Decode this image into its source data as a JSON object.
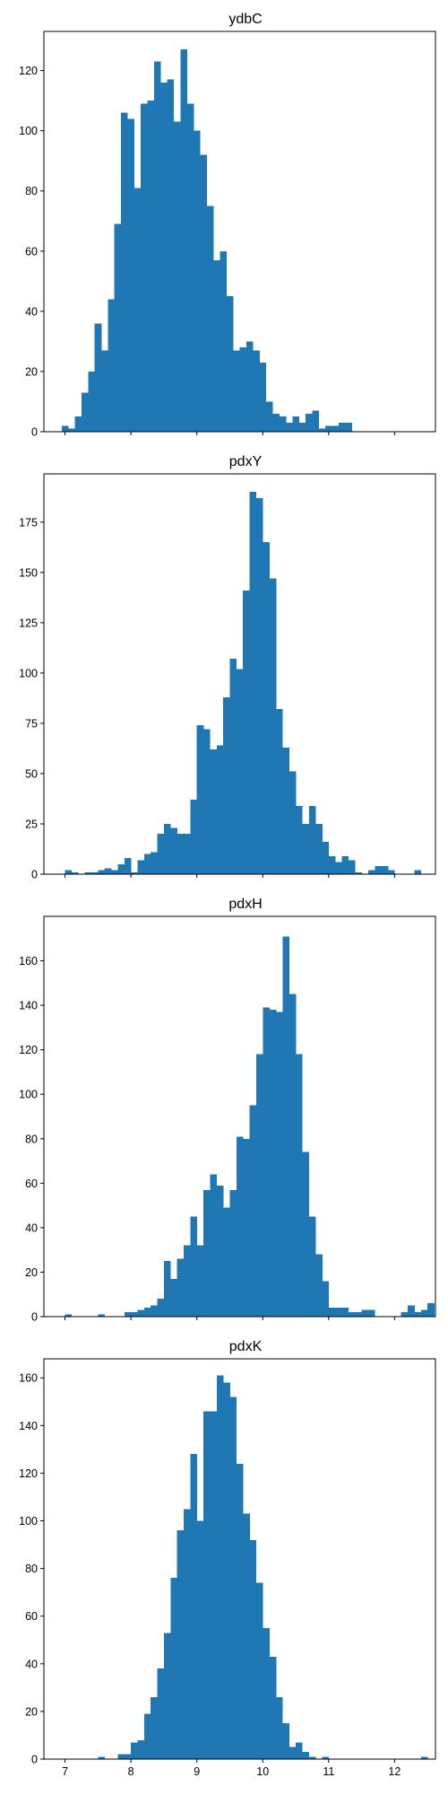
{
  "chart_data": [
    {
      "type": "bar",
      "title": "ydbC",
      "xlim": [
        6.68,
        12.62
      ],
      "ylim": [
        0,
        133
      ],
      "xticks": [
        7,
        8,
        9,
        10,
        11,
        12
      ],
      "xtick_labels": [
        "",
        "",
        "",
        "",
        "",
        ""
      ],
      "yticks": [
        0,
        20,
        40,
        60,
        80,
        100,
        120
      ],
      "bin_start": 6.95,
      "bin_width": 0.1,
      "color": "#1f77b4",
      "values": [
        2,
        1,
        5,
        13,
        20,
        36,
        27,
        44,
        69,
        106,
        104,
        81,
        109,
        110,
        123,
        116,
        117,
        103,
        127,
        109,
        100,
        92,
        75,
        57,
        60,
        45,
        27,
        28,
        30,
        27,
        23,
        10,
        6,
        5,
        3,
        5,
        3,
        6,
        7,
        1,
        2,
        2,
        3,
        3
      ]
    },
    {
      "type": "bar",
      "title": "pdxY",
      "xlim": [
        6.68,
        12.62
      ],
      "ylim": [
        0,
        199
      ],
      "xticks": [
        7,
        8,
        9,
        10,
        11,
        12
      ],
      "xtick_labels": [
        "",
        "",
        "",
        "",
        "",
        ""
      ],
      "yticks": [
        0,
        25,
        50,
        75,
        100,
        125,
        150,
        175
      ],
      "bin_start": 7.0,
      "bin_width": 0.1,
      "color": "#1f77b4",
      "values": [
        2,
        1,
        0,
        1,
        1,
        2,
        3,
        2,
        5,
        8,
        1,
        7,
        10,
        11,
        20,
        25,
        23,
        20,
        20,
        37,
        74,
        72,
        62,
        64,
        88,
        107,
        102,
        141,
        190,
        187,
        165,
        147,
        82,
        63,
        51,
        34,
        25,
        34,
        25,
        16,
        9,
        6,
        9,
        7,
        1,
        0,
        2,
        4,
        4,
        2,
        0,
        0,
        0,
        2,
        0
      ]
    },
    {
      "type": "bar",
      "title": "pdxH",
      "xlim": [
        6.68,
        12.62
      ],
      "ylim": [
        0,
        180
      ],
      "xticks": [
        7,
        8,
        9,
        10,
        11,
        12
      ],
      "xtick_labels": [
        "",
        "",
        "",
        "",
        "",
        ""
      ],
      "yticks": [
        0,
        20,
        40,
        60,
        80,
        100,
        120,
        140,
        160
      ],
      "bin_start": 7.0,
      "bin_width": 0.1,
      "color": "#1f77b4",
      "values": [
        1,
        0,
        0,
        0,
        0,
        1,
        0,
        0,
        0,
        2,
        2,
        3,
        4,
        5,
        8,
        25,
        17,
        26,
        32,
        45,
        32,
        57,
        64,
        59,
        49,
        57,
        81,
        80,
        95,
        118,
        139,
        138,
        137,
        171,
        145,
        118,
        74,
        45,
        28,
        16,
        4,
        4,
        4,
        2,
        2,
        3,
        3,
        0,
        0,
        0,
        0,
        2,
        5,
        2,
        3,
        6
      ]
    },
    {
      "type": "bar",
      "title": "pdxK",
      "xlim": [
        6.68,
        12.62
      ],
      "ylim": [
        0,
        168
      ],
      "xticks": [
        7,
        8,
        9,
        10,
        11,
        12
      ],
      "xtick_labels": [
        "7",
        "8",
        "9",
        "10",
        "11",
        "12"
      ],
      "yticks": [
        0,
        20,
        40,
        60,
        80,
        100,
        120,
        140,
        160
      ],
      "bin_start": 7.5,
      "bin_width": 0.1,
      "color": "#1f77b4",
      "values": [
        1,
        0,
        0,
        2,
        2,
        7,
        8,
        19,
        26,
        38,
        53,
        76,
        96,
        105,
        128,
        100,
        146,
        146,
        161,
        158,
        152,
        124,
        103,
        92,
        74,
        55,
        43,
        26,
        15,
        5,
        7,
        3,
        1,
        0,
        1,
        0,
        0,
        0,
        0,
        0,
        0,
        0,
        0,
        0,
        0,
        0,
        0,
        0,
        0,
        1,
        0
      ]
    }
  ]
}
